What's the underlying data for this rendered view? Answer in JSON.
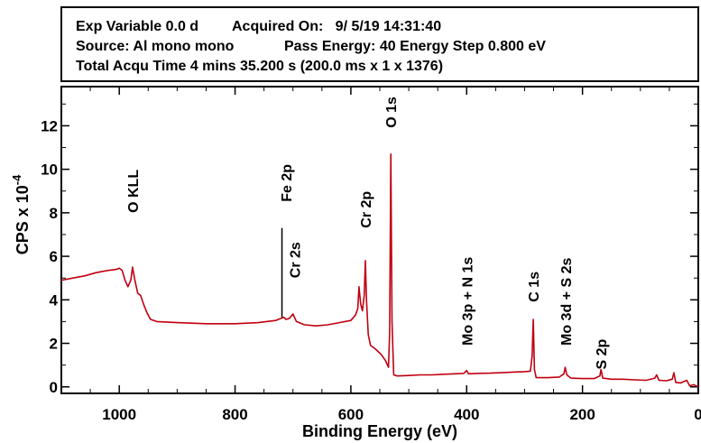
{
  "header": {
    "exp_variable": "Exp Variable 0.0 d",
    "acquired_on": "Acquired On:   9/ 5/19 14:31:40",
    "source": "Source: Al mono mono",
    "pass_energy": "Pass Energy: 40 Energy Step 0.800 eV",
    "total_time": "Total Acqu Time 4 mins 35.200 s (200.0 ms x 1 x 1376)"
  },
  "chart_data": {
    "type": "line",
    "xlabel": "Binding Energy (eV)",
    "ylabel_main": "CPS x 10",
    "ylabel_exp": "-4",
    "xlim": [
      1100,
      0
    ],
    "ylim": [
      -0.3,
      13.8
    ],
    "x_ticks": [
      1000,
      800,
      600,
      400,
      200,
      0
    ],
    "y_ticks": [
      0,
      2,
      4,
      6,
      8,
      10,
      12
    ],
    "line_color": "#c00010",
    "series": [
      {
        "points": [
          [
            1100,
            4.9
          ],
          [
            1080,
            5.0
          ],
          [
            1060,
            5.1
          ],
          [
            1040,
            5.25
          ],
          [
            1020,
            5.35
          ],
          [
            1005,
            5.4
          ],
          [
            1000,
            5.45
          ],
          [
            995,
            5.35
          ],
          [
            990,
            4.9
          ],
          [
            985,
            4.6
          ],
          [
            980,
            4.9
          ],
          [
            977,
            5.5
          ],
          [
            973,
            4.9
          ],
          [
            968,
            4.3
          ],
          [
            963,
            4.2
          ],
          [
            958,
            3.8
          ],
          [
            952,
            3.4
          ],
          [
            946,
            3.1
          ],
          [
            935,
            3.0
          ],
          [
            900,
            2.95
          ],
          [
            850,
            2.9
          ],
          [
            800,
            2.9
          ],
          [
            760,
            2.95
          ],
          [
            730,
            3.05
          ],
          [
            716,
            3.2
          ],
          [
            712,
            3.1
          ],
          [
            706,
            3.15
          ],
          [
            700,
            3.35
          ],
          [
            694,
            3.0
          ],
          [
            680,
            2.85
          ],
          [
            660,
            2.8
          ],
          [
            640,
            2.85
          ],
          [
            620,
            2.95
          ],
          [
            600,
            3.05
          ],
          [
            592,
            3.3
          ],
          [
            588,
            3.6
          ],
          [
            586,
            4.6
          ],
          [
            583,
            3.8
          ],
          [
            580,
            3.5
          ],
          [
            577,
            4.2
          ],
          [
            575,
            5.8
          ],
          [
            573,
            4.0
          ],
          [
            570,
            2.4
          ],
          [
            566,
            1.9
          ],
          [
            560,
            1.8
          ],
          [
            554,
            1.65
          ],
          [
            548,
            1.5
          ],
          [
            540,
            1.2
          ],
          [
            535,
            0.9
          ],
          [
            533,
            2.5
          ],
          [
            531,
            10.7
          ],
          [
            529,
            3.0
          ],
          [
            526,
            0.55
          ],
          [
            520,
            0.5
          ],
          [
            500,
            0.52
          ],
          [
            480,
            0.55
          ],
          [
            460,
            0.55
          ],
          [
            440,
            0.58
          ],
          [
            420,
            0.6
          ],
          [
            405,
            0.62
          ],
          [
            400,
            0.75
          ],
          [
            397,
            0.6
          ],
          [
            380,
            0.62
          ],
          [
            360,
            0.63
          ],
          [
            340,
            0.65
          ],
          [
            320,
            0.68
          ],
          [
            300,
            0.7
          ],
          [
            290,
            0.72
          ],
          [
            287,
            1.4
          ],
          [
            285,
            3.1
          ],
          [
            283,
            0.8
          ],
          [
            280,
            0.42
          ],
          [
            260,
            0.42
          ],
          [
            240,
            0.45
          ],
          [
            232,
            0.6
          ],
          [
            230,
            0.9
          ],
          [
            227,
            0.55
          ],
          [
            220,
            0.4
          ],
          [
            200,
            0.38
          ],
          [
            180,
            0.38
          ],
          [
            170,
            0.5
          ],
          [
            168,
            0.8
          ],
          [
            165,
            0.4
          ],
          [
            150,
            0.35
          ],
          [
            130,
            0.35
          ],
          [
            110,
            0.32
          ],
          [
            90,
            0.3
          ],
          [
            75,
            0.4
          ],
          [
            72,
            0.55
          ],
          [
            68,
            0.3
          ],
          [
            55,
            0.28
          ],
          [
            45,
            0.35
          ],
          [
            42,
            0.65
          ],
          [
            39,
            0.2
          ],
          [
            30,
            0.18
          ],
          [
            20,
            0.3
          ],
          [
            15,
            0.05
          ],
          [
            8,
            0.1
          ],
          [
            0,
            0.0
          ]
        ]
      }
    ],
    "annotations": [
      {
        "text": "O KLL",
        "x": 977
      },
      {
        "text": "Fe 2p",
        "x": 712
      },
      {
        "text": "Cr 2s",
        "x": 697
      },
      {
        "text": "Cr 2p",
        "x": 575
      },
      {
        "text": "O 1s",
        "x": 531
      },
      {
        "text": "Mo 3p + N 1s",
        "x": 400
      },
      {
        "text": "C 1s",
        "x": 285
      },
      {
        "text": "Mo 3d + S 2s",
        "x": 229
      },
      {
        "text": "S 2p",
        "x": 168
      }
    ]
  }
}
